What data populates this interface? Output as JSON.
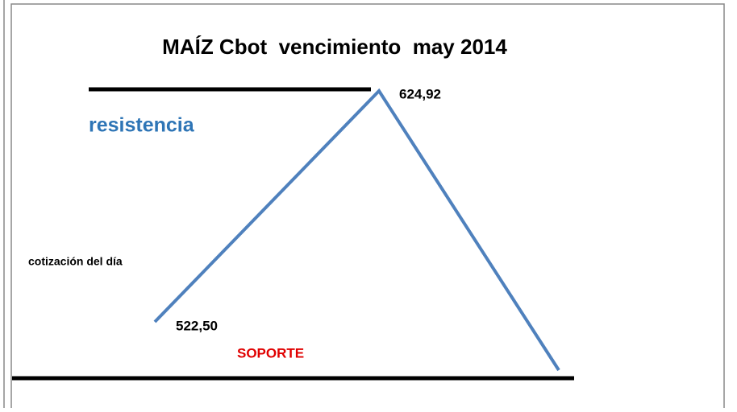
{
  "title": "MAÍZ Cbot  vencimiento  may 2014",
  "resistance": {
    "label": "resistencia",
    "price": "624,92"
  },
  "current": {
    "label": "cotización del día",
    "price": "522,50"
  },
  "support": {
    "label": "SOPORTE"
  }
}
